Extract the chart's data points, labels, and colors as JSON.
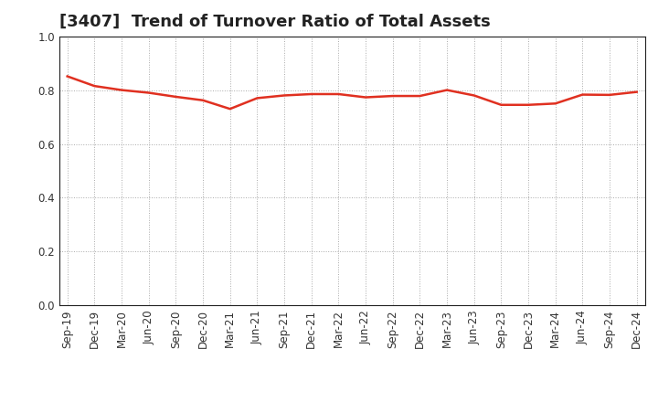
{
  "title": "[3407]  Trend of Turnover Ratio of Total Assets",
  "x_labels": [
    "Sep-19",
    "Dec-19",
    "Mar-20",
    "Jun-20",
    "Sep-20",
    "Dec-20",
    "Mar-21",
    "Jun-21",
    "Sep-21",
    "Dec-21",
    "Mar-22",
    "Jun-22",
    "Sep-22",
    "Dec-22",
    "Mar-23",
    "Jun-23",
    "Sep-23",
    "Dec-23",
    "Mar-24",
    "Jun-24",
    "Sep-24",
    "Dec-24"
  ],
  "y_values": [
    0.851,
    0.815,
    0.8,
    0.79,
    0.775,
    0.762,
    0.73,
    0.77,
    0.78,
    0.785,
    0.785,
    0.773,
    0.778,
    0.778,
    0.8,
    0.78,
    0.745,
    0.745,
    0.75,
    0.783,
    0.782,
    0.793
  ],
  "line_color": "#e03020",
  "line_width": 1.8,
  "ylim": [
    0.0,
    1.0
  ],
  "yticks": [
    0.0,
    0.2,
    0.4,
    0.6,
    0.8,
    1.0
  ],
  "background_color": "#ffffff",
  "grid_color": "#aaaaaa",
  "title_fontsize": 13,
  "tick_fontsize": 8.5,
  "title_color": "#222222"
}
